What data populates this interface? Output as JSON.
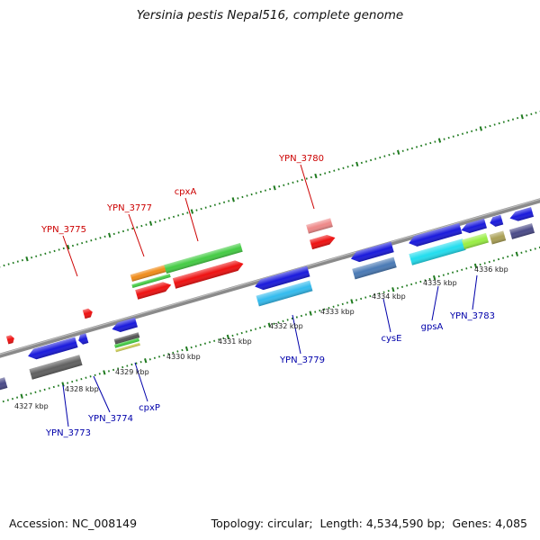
{
  "title": "Yersinia pestis Nepal516, complete genome",
  "footer": {
    "accession_label": "Accession:",
    "accession": "NC_008149",
    "topology_label": "Topology:",
    "topology": "circular",
    "length_label": "Length:",
    "length": "4,534,590 bp",
    "genes_label": "Genes:",
    "genes": "4,085"
  },
  "colors": {
    "backbone": "#8a8a8a",
    "tick": "#1f7a1f",
    "forward_label": "#cc0000",
    "reverse_label": "#0000aa"
  },
  "scale_labels": [
    "4327 kbp",
    "4328 kbp",
    "4329 kbp",
    "4330 kbp",
    "4331 kbp",
    "4332 kbp",
    "4333 kbp",
    "4334 kbp",
    "4335 kbp",
    "4336 kbp"
  ],
  "gene_labels": {
    "forward": [
      "YPN_3775",
      "YPN_3777",
      "cpxA",
      "YPN_3780"
    ],
    "reverse": [
      "YPN_3773",
      "YPN_3774",
      "cpxP",
      "YPN_3779",
      "cysE",
      "gpsA",
      "YPN_3783"
    ]
  }
}
